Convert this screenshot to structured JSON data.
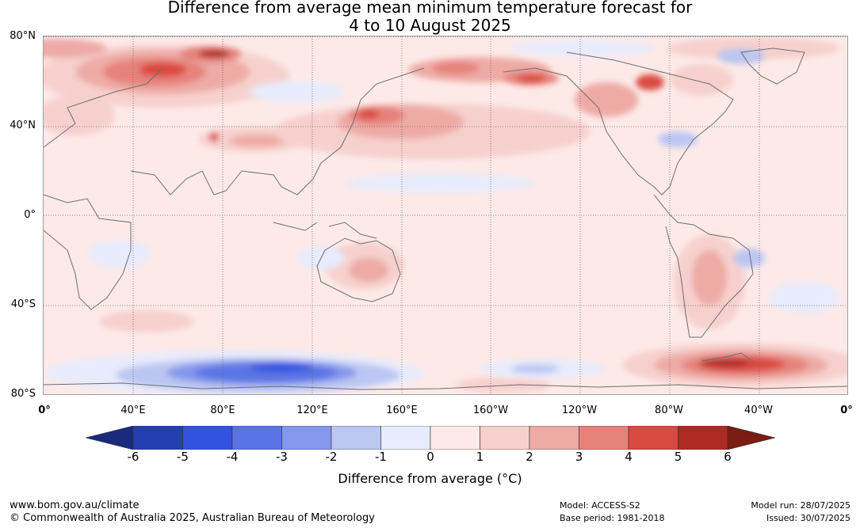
{
  "title": {
    "line1": "Difference from average mean minimum temperature forecast for",
    "line2": "4 to 10 August 2025"
  },
  "map": {
    "latitude_labels": [
      "80°N",
      "40°N",
      "0°",
      "40°S",
      "80°S"
    ],
    "longitude_labels": [
      "0°",
      "40°E",
      "80°E",
      "120°E",
      "160°E",
      "160°W",
      "120°W",
      "80°W",
      "40°W",
      "0°"
    ],
    "grid": "dotted"
  },
  "colorbar": {
    "ticks": [
      "-6",
      "-5",
      "-4",
      "-3",
      "-2",
      "-1",
      "0",
      "1",
      "2",
      "3",
      "4",
      "5",
      "6"
    ],
    "colors": [
      "#243fae",
      "#3452e0",
      "#5a74e4",
      "#8597ea",
      "#bcc6f2",
      "#e7ebfb",
      "#fdeae8",
      "#f6d0cd",
      "#eeaaa5",
      "#e6827b",
      "#d94a40",
      "#ad2a22"
    ],
    "under_color": "#1a2a7c",
    "over_color": "#7a1c14",
    "label": "Difference from average (°C)"
  },
  "footer": {
    "website": "www.bom.gov.au/climate",
    "copyright": "© Commonwealth of Australia 2025, Australian Bureau of Meteorology",
    "model": "Model: ACCESS-S2",
    "base_period": "Base period: 1981-2018",
    "model_run": "Model run: 28/07/2025",
    "issued": "Issued: 30/07/2025"
  }
}
